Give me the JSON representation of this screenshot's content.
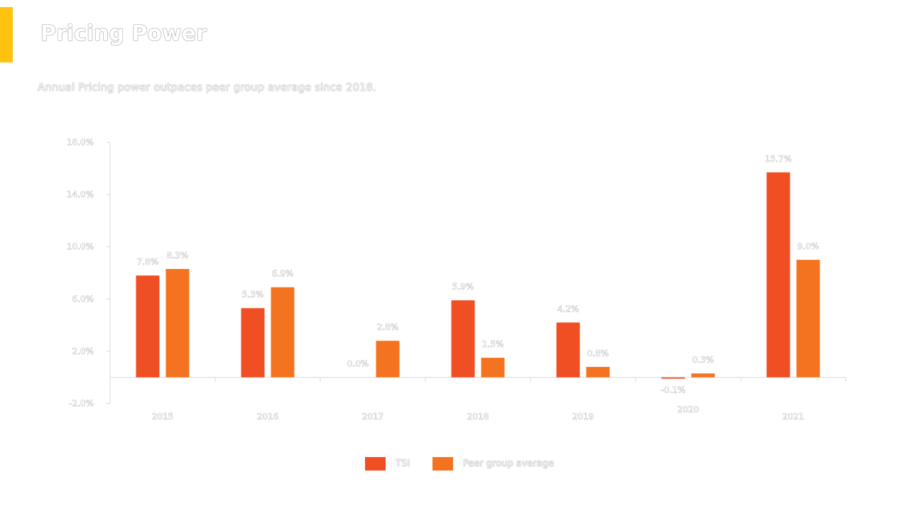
{
  "title": "Pricing Power",
  "subtitle": "Annual Pricing power outpaces peer group average since 2018.",
  "colors": {
    "accent": "#ffc20e",
    "series_1": "#f04e23",
    "series_2": "#f47321",
    "axis": "#d9d9d9"
  },
  "chart_data": {
    "type": "bar",
    "categories": [
      "2015",
      "2016",
      "2017",
      "2018",
      "2019",
      "2020",
      "2021"
    ],
    "series": [
      {
        "name": "TSI",
        "values": [
          7.8,
          5.3,
          0.0,
          5.9,
          4.2,
          -0.1,
          15.7
        ],
        "labels": [
          "7.8%",
          "5.3%",
          "0.0%",
          "5.9%",
          "4.2%",
          "-0.1%",
          "15.7%"
        ]
      },
      {
        "name": "Peer group average",
        "values": [
          8.3,
          6.9,
          2.8,
          1.5,
          0.8,
          0.3,
          9.0
        ],
        "labels": [
          "8.3%",
          "6.9%",
          "2.8%",
          "1.5%",
          "0.8%",
          "0.3%",
          "9.0%"
        ]
      }
    ],
    "y_ticks": [
      18,
      14,
      10,
      6,
      2,
      -2
    ],
    "y_tick_labels": [
      "18.0%",
      "14.0%",
      "10.0%",
      "6.0%",
      "2.0%",
      "-2.0%"
    ],
    "ylim": [
      -2,
      18
    ],
    "xlabel": "",
    "ylabel": "",
    "grid": false,
    "legend": "bottom"
  }
}
